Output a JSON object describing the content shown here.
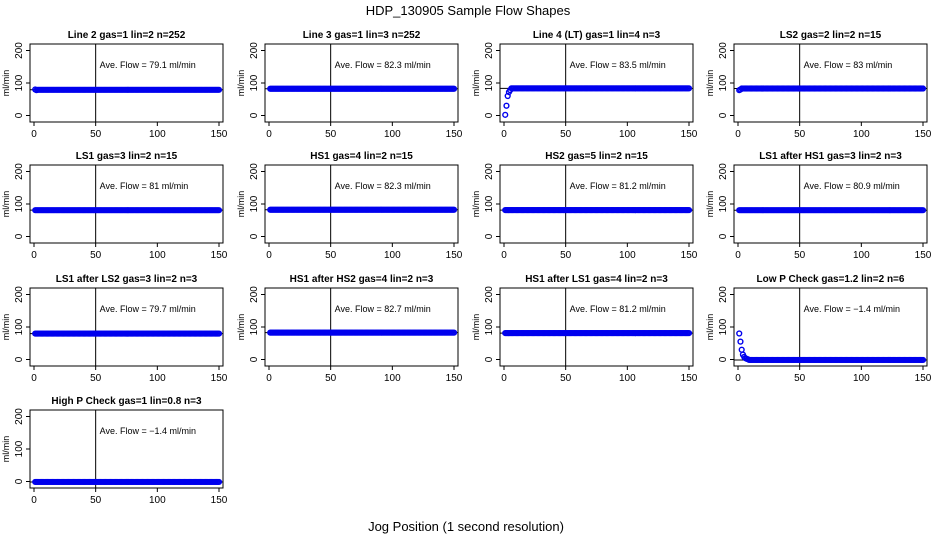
{
  "title": "HDP_130905  Sample Flow Shapes",
  "xlabel": "Jog Position (1 second resolution)",
  "colors": {
    "points": "#0000ee",
    "axes": "#000000"
  },
  "chart_data": [
    {
      "type": "scatter",
      "title": "Line 2 gas=1 lin=2 n=252",
      "ylabel": "ml/min",
      "annotation": "Ave. Flow =  79.1  ml/min",
      "xlim": [
        0,
        150
      ],
      "ylim": [
        -20,
        220
      ],
      "xticks": [
        0,
        50,
        100,
        150
      ],
      "yticks": [
        0,
        100,
        200
      ],
      "ref_lines": {
        "x": 50,
        "y": 79.1
      },
      "points": {
        "x_range": [
          1,
          150
        ],
        "y_start": [
          80,
          78
        ],
        "y_level": 79.1
      }
    },
    {
      "type": "scatter",
      "title": "Line 3 gas=1 lin=3 n=252",
      "ylabel": "ml/min",
      "annotation": "Ave. Flow =  82.3  ml/min",
      "xlim": [
        0,
        150
      ],
      "ylim": [
        -20,
        220
      ],
      "xticks": [
        0,
        50,
        100,
        150
      ],
      "yticks": [
        0,
        100,
        200
      ],
      "ref_lines": {
        "x": 50,
        "y": 82.3
      },
      "points": {
        "x_range": [
          1,
          150
        ],
        "y_start": [],
        "y_level": 82.3
      }
    },
    {
      "type": "scatter",
      "title": "Line 4 (LT) gas=1 lin=4 n=3",
      "ylabel": "ml/min",
      "annotation": "Ave. Flow =  83.5  ml/min",
      "xlim": [
        0,
        150
      ],
      "ylim": [
        -20,
        220
      ],
      "xticks": [
        0,
        50,
        100,
        150
      ],
      "yticks": [
        0,
        100,
        200
      ],
      "ref_lines": {
        "x": 50,
        "y": 83.5
      },
      "points": {
        "x_range": [
          1,
          150
        ],
        "y_start": [
          2,
          30,
          60,
          72,
          78
        ],
        "y_level": 83.5
      }
    },
    {
      "type": "scatter",
      "title": "LS2 gas=2 lin=2 n=15",
      "ylabel": "ml/min",
      "annotation": "Ave. Flow =  83  ml/min",
      "xlim": [
        0,
        150
      ],
      "ylim": [
        -20,
        220
      ],
      "xticks": [
        0,
        50,
        100,
        150
      ],
      "yticks": [
        0,
        100,
        200
      ],
      "ref_lines": {
        "x": 50,
        "y": 83
      },
      "points": {
        "x_range": [
          1,
          150
        ],
        "y_start": [
          78,
          80
        ],
        "y_level": 83
      }
    },
    {
      "type": "scatter",
      "title": "LS1 gas=3 lin=2 n=15",
      "ylabel": "ml/min",
      "annotation": "Ave. Flow =  81  ml/min",
      "xlim": [
        0,
        150
      ],
      "ylim": [
        -20,
        220
      ],
      "xticks": [
        0,
        50,
        100,
        150
      ],
      "yticks": [
        0,
        100,
        200
      ],
      "ref_lines": {
        "x": 50,
        "y": 81
      },
      "points": {
        "x_range": [
          1,
          150
        ],
        "y_start": [],
        "y_level": 81
      }
    },
    {
      "type": "scatter",
      "title": "HS1 gas=4 lin=2 n=15",
      "ylabel": "ml/min",
      "annotation": "Ave. Flow =  82.3  ml/min",
      "xlim": [
        0,
        150
      ],
      "ylim": [
        -20,
        220
      ],
      "xticks": [
        0,
        50,
        100,
        150
      ],
      "yticks": [
        0,
        100,
        200
      ],
      "ref_lines": {
        "x": 50,
        "y": 82.3
      },
      "points": {
        "x_range": [
          1,
          150
        ],
        "y_start": [],
        "y_level": 82.3
      }
    },
    {
      "type": "scatter",
      "title": "HS2 gas=5 lin=2 n=15",
      "ylabel": "ml/min",
      "annotation": "Ave. Flow =  81.2  ml/min",
      "xlim": [
        0,
        150
      ],
      "ylim": [
        -20,
        220
      ],
      "xticks": [
        0,
        50,
        100,
        150
      ],
      "yticks": [
        0,
        100,
        200
      ],
      "ref_lines": {
        "x": 50,
        "y": 81.2
      },
      "points": {
        "x_range": [
          1,
          150
        ],
        "y_start": [],
        "y_level": 81.2
      }
    },
    {
      "type": "scatter",
      "title": "LS1 after HS1 gas=3 lin=2 n=3",
      "ylabel": "ml/min",
      "annotation": "Ave. Flow =  80.9  ml/min",
      "xlim": [
        0,
        150
      ],
      "ylim": [
        -20,
        220
      ],
      "xticks": [
        0,
        50,
        100,
        150
      ],
      "yticks": [
        0,
        100,
        200
      ],
      "ref_lines": {
        "x": 50,
        "y": 80.9
      },
      "points": {
        "x_range": [
          1,
          150
        ],
        "y_start": [],
        "y_level": 80.9
      }
    },
    {
      "type": "scatter",
      "title": "LS1 after LS2 gas=3 lin=2 n=3",
      "ylabel": "ml/min",
      "annotation": "Ave. Flow =  79.7  ml/min",
      "xlim": [
        0,
        150
      ],
      "ylim": [
        -20,
        220
      ],
      "xticks": [
        0,
        50,
        100,
        150
      ],
      "yticks": [
        0,
        100,
        200
      ],
      "ref_lines": {
        "x": 50,
        "y": 79.7
      },
      "points": {
        "x_range": [
          1,
          150
        ],
        "y_start": [],
        "y_level": 79.7
      }
    },
    {
      "type": "scatter",
      "title": "HS1 after HS2 gas=4 lin=2 n=3",
      "ylabel": "ml/min",
      "annotation": "Ave. Flow =  82.7  ml/min",
      "xlim": [
        0,
        150
      ],
      "ylim": [
        -20,
        220
      ],
      "xticks": [
        0,
        50,
        100,
        150
      ],
      "yticks": [
        0,
        100,
        200
      ],
      "ref_lines": {
        "x": 50,
        "y": 82.7
      },
      "points": {
        "x_range": [
          1,
          150
        ],
        "y_start": [],
        "y_level": 82.7
      }
    },
    {
      "type": "scatter",
      "title": "HS1 after LS1 gas=4 lin=2 n=3",
      "ylabel": "ml/min",
      "annotation": "Ave. Flow =  81.2  ml/min",
      "xlim": [
        0,
        150
      ],
      "ylim": [
        -20,
        220
      ],
      "xticks": [
        0,
        50,
        100,
        150
      ],
      "yticks": [
        0,
        100,
        200
      ],
      "ref_lines": {
        "x": 50,
        "y": 81.2
      },
      "points": {
        "x_range": [
          1,
          150
        ],
        "y_start": [],
        "y_level": 81.2
      }
    },
    {
      "type": "scatter",
      "title": "Low P Check gas=1.2 lin=2 n=6",
      "ylabel": "ml/min",
      "annotation": "Ave. Flow =  −1.4  ml/min",
      "xlim": [
        0,
        150
      ],
      "ylim": [
        -20,
        220
      ],
      "xticks": [
        0,
        50,
        100,
        150
      ],
      "yticks": [
        0,
        100,
        200
      ],
      "ref_lines": {
        "x": 50,
        "y": -1.4
      },
      "points": {
        "x_range": [
          1,
          150
        ],
        "y_start": [
          80,
          55,
          30,
          15,
          8,
          4,
          2,
          1
        ],
        "y_level": -1.4
      }
    },
    {
      "type": "scatter",
      "title": "High P Check gas=1 lin=0.8 n=3",
      "ylabel": "ml/min",
      "annotation": "Ave. Flow =  −1.4  ml/min",
      "xlim": [
        0,
        150
      ],
      "ylim": [
        -20,
        220
      ],
      "xticks": [
        0,
        50,
        100,
        150
      ],
      "yticks": [
        0,
        100,
        200
      ],
      "ref_lines": {
        "x": 50,
        "y": -1.4
      },
      "points": {
        "x_range": [
          1,
          150
        ],
        "y_start": [],
        "y_level": -1.4
      }
    }
  ]
}
